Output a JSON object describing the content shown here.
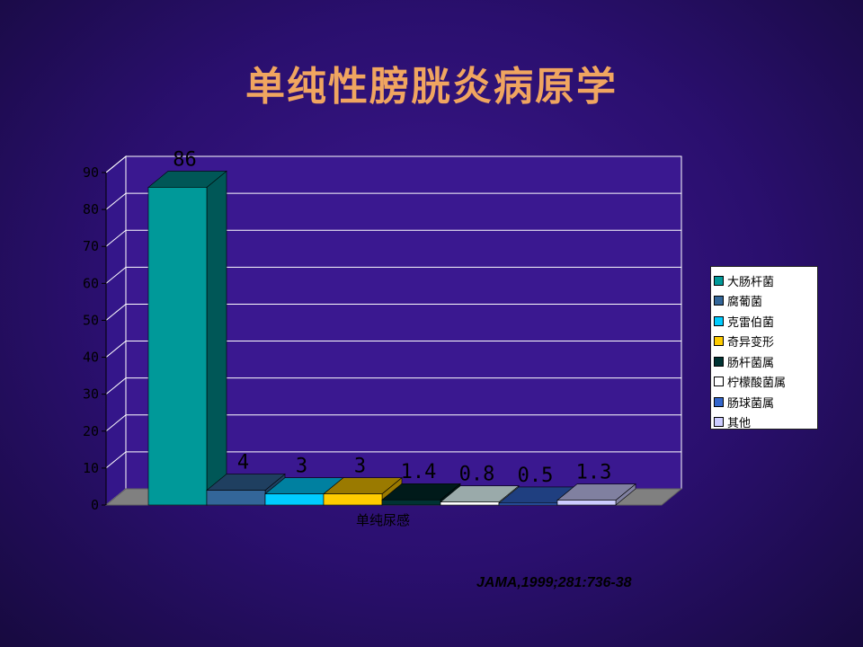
{
  "slide": {
    "title": "单纯性膀胱炎病原学",
    "citation": "JAMA,1999;281:736-38"
  },
  "chart_data": {
    "type": "bar",
    "title": "",
    "xlabel": "",
    "ylabel": "",
    "categories": [
      "单纯尿感"
    ],
    "ylim": [
      0,
      90
    ],
    "yticks": [
      0,
      10,
      20,
      30,
      40,
      50,
      60,
      70,
      80,
      90
    ],
    "grid": true,
    "legend_position": "right",
    "series": [
      {
        "name": "大肠杆菌",
        "values": [
          86
        ],
        "label": "86",
        "color": "#009999",
        "dark": "#005757"
      },
      {
        "name": "腐葡菌",
        "values": [
          4
        ],
        "label": "4",
        "color": "#336699",
        "dark": "#1f3f60"
      },
      {
        "name": "克雷伯菌",
        "values": [
          3
        ],
        "label": "3",
        "color": "#00ccff",
        "dark": "#0080a0"
      },
      {
        "name": "奇异变形",
        "values": [
          3
        ],
        "label": "3",
        "color": "#ffcc00",
        "dark": "#9a7a00"
      },
      {
        "name": "肠杆菌属",
        "values": [
          1.4
        ],
        "label": "1.4",
        "color": "#003333",
        "dark": "#001a1a"
      },
      {
        "name": "柠檬酸菌属",
        "values": [
          0.8
        ],
        "label": "0.8",
        "color": "#ffffff",
        "dark": "#9aaaaa"
      },
      {
        "name": "肠球菌属",
        "values": [
          0.5
        ],
        "label": "0.5",
        "color": "#3366cc",
        "dark": "#1f3f80"
      },
      {
        "name": "其他",
        "values": [
          1.3
        ],
        "label": "1.3",
        "color": "#ccccff",
        "dark": "#8080a0"
      }
    ]
  }
}
